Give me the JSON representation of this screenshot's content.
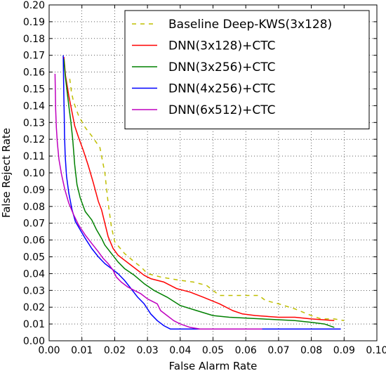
{
  "chart_data": {
    "type": "line",
    "xlabel": "False Alarm Rate",
    "ylabel": "False Reject Rate",
    "xlim": [
      0.0,
      0.1
    ],
    "ylim": [
      0.0,
      0.2
    ],
    "grid": true,
    "legend_position": "top-right",
    "x_ticks": [
      "0.00",
      "0.01",
      "0.02",
      "0.03",
      "0.04",
      "0.05",
      "0.06",
      "0.07",
      "0.08",
      "0.09",
      "0.10"
    ],
    "y_ticks": [
      "0.00",
      "0.01",
      "0.02",
      "0.03",
      "0.04",
      "0.05",
      "0.06",
      "0.07",
      "0.08",
      "0.09",
      "0.10",
      "0.11",
      "0.12",
      "0.13",
      "0.14",
      "0.15",
      "0.16",
      "0.17",
      "0.18",
      "0.19",
      "0.20"
    ],
    "series": [
      {
        "name": "Baseline Deep-KWS(3x128)",
        "color": "#bfbf00",
        "dash": true,
        "points": [
          [
            0.0063,
            0.156
          ],
          [
            0.0068,
            0.148
          ],
          [
            0.0075,
            0.142
          ],
          [
            0.009,
            0.134
          ],
          [
            0.011,
            0.127
          ],
          [
            0.013,
            0.122
          ],
          [
            0.0155,
            0.115
          ],
          [
            0.017,
            0.1
          ],
          [
            0.018,
            0.082
          ],
          [
            0.019,
            0.068
          ],
          [
            0.02,
            0.059
          ],
          [
            0.023,
            0.052
          ],
          [
            0.026,
            0.047
          ],
          [
            0.028,
            0.044
          ],
          [
            0.03,
            0.04
          ],
          [
            0.034,
            0.038
          ],
          [
            0.04,
            0.036
          ],
          [
            0.044,
            0.035
          ],
          [
            0.048,
            0.033
          ],
          [
            0.05,
            0.03
          ],
          [
            0.052,
            0.027
          ],
          [
            0.057,
            0.027
          ],
          [
            0.064,
            0.027
          ],
          [
            0.066,
            0.024
          ],
          [
            0.07,
            0.022
          ],
          [
            0.075,
            0.019
          ],
          [
            0.08,
            0.015
          ],
          [
            0.083,
            0.013
          ],
          [
            0.087,
            0.013
          ],
          [
            0.09,
            0.012
          ]
        ]
      },
      {
        "name": "DNN(3x128)+CTC",
        "color": "#ff0000",
        "dash": false,
        "points": [
          [
            0.0045,
            0.169
          ],
          [
            0.005,
            0.158
          ],
          [
            0.006,
            0.146
          ],
          [
            0.007,
            0.136
          ],
          [
            0.0078,
            0.128
          ],
          [
            0.009,
            0.121
          ],
          [
            0.0105,
            0.113
          ],
          [
            0.012,
            0.104
          ],
          [
            0.0135,
            0.094
          ],
          [
            0.015,
            0.083
          ],
          [
            0.016,
            0.078
          ],
          [
            0.017,
            0.07
          ],
          [
            0.018,
            0.062
          ],
          [
            0.0195,
            0.055
          ],
          [
            0.021,
            0.051
          ],
          [
            0.023,
            0.048
          ],
          [
            0.025,
            0.045
          ],
          [
            0.027,
            0.042
          ],
          [
            0.029,
            0.039
          ],
          [
            0.031,
            0.037
          ],
          [
            0.035,
            0.035
          ],
          [
            0.039,
            0.031
          ],
          [
            0.043,
            0.029
          ],
          [
            0.047,
            0.026
          ],
          [
            0.052,
            0.022
          ],
          [
            0.056,
            0.018
          ],
          [
            0.059,
            0.016
          ],
          [
            0.063,
            0.015
          ],
          [
            0.07,
            0.014
          ],
          [
            0.075,
            0.014
          ],
          [
            0.08,
            0.013
          ],
          [
            0.087,
            0.012
          ]
        ]
      },
      {
        "name": "DNN(3x256)+CTC",
        "color": "#008000",
        "dash": false,
        "points": [
          [
            0.0045,
            0.168
          ],
          [
            0.0049,
            0.158
          ],
          [
            0.0054,
            0.15
          ],
          [
            0.006,
            0.14
          ],
          [
            0.0066,
            0.131
          ],
          [
            0.0072,
            0.12
          ],
          [
            0.0078,
            0.105
          ],
          [
            0.0085,
            0.093
          ],
          [
            0.0095,
            0.085
          ],
          [
            0.011,
            0.077
          ],
          [
            0.013,
            0.072
          ],
          [
            0.0145,
            0.066
          ],
          [
            0.016,
            0.061
          ],
          [
            0.017,
            0.057
          ],
          [
            0.019,
            0.052
          ],
          [
            0.021,
            0.047
          ],
          [
            0.023,
            0.043
          ],
          [
            0.026,
            0.039
          ],
          [
            0.029,
            0.034
          ],
          [
            0.032,
            0.03
          ],
          [
            0.036,
            0.026
          ],
          [
            0.04,
            0.021
          ],
          [
            0.045,
            0.018
          ],
          [
            0.05,
            0.015
          ],
          [
            0.055,
            0.014
          ],
          [
            0.065,
            0.013
          ],
          [
            0.075,
            0.012
          ],
          [
            0.08,
            0.011
          ],
          [
            0.084,
            0.01
          ],
          [
            0.087,
            0.008
          ]
        ]
      },
      {
        "name": "DNN(4x256)+CTC",
        "color": "#0000ff",
        "dash": false,
        "points": [
          [
            0.0043,
            0.17
          ],
          [
            0.0044,
            0.158
          ],
          [
            0.0045,
            0.145
          ],
          [
            0.0046,
            0.135
          ],
          [
            0.0047,
            0.123
          ],
          [
            0.0049,
            0.11
          ],
          [
            0.0053,
            0.098
          ],
          [
            0.006,
            0.088
          ],
          [
            0.007,
            0.078
          ],
          [
            0.008,
            0.071
          ],
          [
            0.0095,
            0.066
          ],
          [
            0.011,
            0.061
          ],
          [
            0.013,
            0.055
          ],
          [
            0.015,
            0.05
          ],
          [
            0.017,
            0.046
          ],
          [
            0.019,
            0.043
          ],
          [
            0.021,
            0.04
          ],
          [
            0.023,
            0.036
          ],
          [
            0.025,
            0.031
          ],
          [
            0.027,
            0.026
          ],
          [
            0.029,
            0.022
          ],
          [
            0.031,
            0.016
          ],
          [
            0.033,
            0.012
          ],
          [
            0.035,
            0.009
          ],
          [
            0.037,
            0.007
          ],
          [
            0.04,
            0.007
          ],
          [
            0.05,
            0.007
          ],
          [
            0.07,
            0.007
          ],
          [
            0.089,
            0.007
          ]
        ]
      },
      {
        "name": "DNN(6x512)+CTC",
        "color": "#bf00bf",
        "dash": false,
        "points": [
          [
            0.0018,
            0.159
          ],
          [
            0.0019,
            0.148
          ],
          [
            0.002,
            0.138
          ],
          [
            0.0022,
            0.127
          ],
          [
            0.0025,
            0.118
          ],
          [
            0.003,
            0.108
          ],
          [
            0.0038,
            0.099
          ],
          [
            0.0048,
            0.09
          ],
          [
            0.006,
            0.082
          ],
          [
            0.0075,
            0.075
          ],
          [
            0.009,
            0.069
          ],
          [
            0.011,
            0.063
          ],
          [
            0.013,
            0.058
          ],
          [
            0.015,
            0.053
          ],
          [
            0.0165,
            0.049
          ],
          [
            0.018,
            0.046
          ],
          [
            0.0195,
            0.042
          ],
          [
            0.0205,
            0.038
          ],
          [
            0.022,
            0.035
          ],
          [
            0.024,
            0.032
          ],
          [
            0.026,
            0.03
          ],
          [
            0.028,
            0.028
          ],
          [
            0.03,
            0.025
          ],
          [
            0.033,
            0.022
          ],
          [
            0.034,
            0.018
          ],
          [
            0.036,
            0.015
          ],
          [
            0.038,
            0.012
          ],
          [
            0.04,
            0.01
          ],
          [
            0.043,
            0.008
          ],
          [
            0.046,
            0.007
          ],
          [
            0.055,
            0.007
          ],
          [
            0.065,
            0.007
          ]
        ]
      }
    ]
  }
}
